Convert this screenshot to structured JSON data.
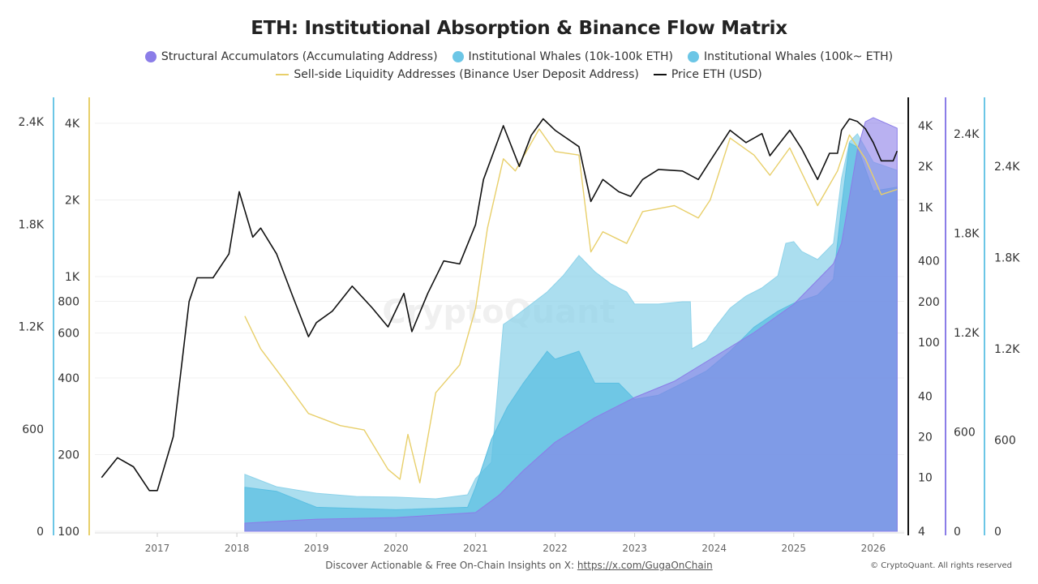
{
  "chart_data": {
    "type": "area+line",
    "title": "ETH: Institutional Absorption & Binance Flow Matrix",
    "legend_position": "top",
    "grid": true,
    "x_ticks": [
      "2017",
      "2018",
      "2019",
      "2020",
      "2021",
      "2022",
      "2023",
      "2024",
      "2025",
      "2026"
    ],
    "axes": {
      "left_outer": {
        "color": "#6cc6e6",
        "scale": "linear",
        "range": [
          0,
          2400
        ],
        "ticks": [
          "0",
          "600",
          "1.2K",
          "1.8K",
          "2.4K"
        ],
        "tick_values": [
          0,
          600,
          1200,
          1800,
          2400
        ]
      },
      "left_inner": {
        "color": "#e8cf6a",
        "scale": "log",
        "range": [
          100,
          4000
        ],
        "ticks": [
          "100",
          "200",
          "400",
          "600",
          "800",
          "1K",
          "2K",
          "4K"
        ],
        "tick_values": [
          100,
          200,
          400,
          600,
          800,
          1000,
          2000,
          4000
        ]
      },
      "right_price": {
        "color": "#111111",
        "scale": "log",
        "range": [
          4,
          4000
        ],
        "ticks": [
          "4",
          "10",
          "20",
          "40",
          "100",
          "200",
          "400",
          "1K",
          "2K",
          "4K"
        ],
        "tick_values": [
          4,
          10,
          20,
          40,
          100,
          200,
          400,
          1000,
          2000,
          4000
        ]
      },
      "right_purple": {
        "color": "#8b7de8",
        "scale": "linear",
        "range": [
          0,
          2400
        ],
        "ticks": [
          "0",
          "600",
          "1.2K",
          "1.8K",
          "2.4K"
        ],
        "tick_values": [
          0,
          600,
          1200,
          1800,
          2400
        ]
      },
      "right_blue": {
        "color": "#6cc6e6",
        "scale": "linear",
        "range": [
          0,
          2700
        ],
        "ticks": [
          "0",
          "600",
          "1.2K",
          "1.8K",
          "2.4K"
        ],
        "tick_values": [
          0,
          600,
          1200,
          1800,
          2400
        ]
      }
    },
    "series": [
      {
        "name": "Institutional Whales (100k~ ETH)",
        "type": "area",
        "axis": "left_outer",
        "color": "#8fd3ea",
        "x": [
          2018.1,
          2018.5,
          2019,
          2019.5,
          2020,
          2020.5,
          2020.9,
          2021.0,
          2021.2,
          2021.35,
          2021.5,
          2021.9,
          2022.1,
          2022.3,
          2022.5,
          2022.7,
          2022.9,
          2023.0,
          2023.3,
          2023.6,
          2023.7,
          2023.72,
          2023.9,
          2024.0,
          2024.2,
          2024.4,
          2024.6,
          2024.8,
          2024.9,
          2025.0,
          2025.1,
          2025.3,
          2025.5,
          2025.6,
          2025.7,
          2025.8,
          2026.0,
          2026.3
        ],
        "y": [
          333,
          261,
          223,
          204,
          200,
          190,
          214,
          309,
          404,
          1212,
          1260,
          1402,
          1497,
          1616,
          1521,
          1450,
          1402,
          1331,
          1331,
          1345,
          1345,
          1069,
          1117,
          1188,
          1307,
          1378,
          1426,
          1497,
          1687,
          1697,
          1640,
          1592,
          1687,
          2067,
          2281,
          2329,
          2163,
          2115
        ]
      },
      {
        "name": "Institutional Whales (10k-100k ETH)",
        "type": "area",
        "axis": "right_blue",
        "color": "#5bbfe2",
        "x": [
          2018.1,
          2018.5,
          2019,
          2020,
          2020.9,
          2021.0,
          2021.2,
          2021.4,
          2021.6,
          2021.9,
          2022.0,
          2022.3,
          2022.5,
          2022.8,
          2023.0,
          2023.3,
          2023.6,
          2023.9,
          2024.2,
          2024.5,
          2024.8,
          2025.0,
          2025.3,
          2025.5,
          2025.6,
          2025.7,
          2025.8,
          2026.0,
          2026.3
        ],
        "y": [
          289,
          263,
          158,
          142,
          158,
          289,
          605,
          816,
          974,
          1184,
          1132,
          1184,
          974,
          974,
          868,
          895,
          974,
          1053,
          1184,
          1342,
          1447,
          1500,
          1553,
          1658,
          2132,
          2553,
          2526,
          2237,
          2263
        ]
      },
      {
        "name": "Structural Accumulators (Accumulating Address)",
        "type": "area",
        "axis": "right_purple",
        "color": "#8b7de8",
        "x": [
          2018.1,
          2019,
          2020,
          2021,
          2021.3,
          2021.6,
          2022,
          2022.5,
          2023,
          2023.5,
          2024,
          2024.5,
          2025,
          2025.5,
          2025.6,
          2025.8,
          2025.9,
          2026.0,
          2026.3
        ],
        "y": [
          49,
          73,
          83,
          113,
          220,
          367,
          538,
          686,
          808,
          906,
          1053,
          1200,
          1371,
          1616,
          1739,
          2302,
          2473,
          2498,
          2434
        ]
      },
      {
        "name": "Sell-side Liquidity Addresses (Binance User Deposit Address)",
        "type": "line",
        "axis": "left_inner",
        "color": "#e8cf6a",
        "x": [
          2018.1,
          2018.3,
          2018.6,
          2018.9,
          2019.3,
          2019.6,
          2019.9,
          2020.05,
          2020.15,
          2020.3,
          2020.5,
          2020.8,
          2021.0,
          2021.15,
          2021.35,
          2021.5,
          2021.8,
          2022.0,
          2022.3,
          2022.45,
          2022.6,
          2022.9,
          2023.1,
          2023.5,
          2023.8,
          2023.95,
          2024.2,
          2024.5,
          2024.7,
          2024.95,
          2025.3,
          2025.55,
          2025.7,
          2025.9,
          2026.1,
          2026.3
        ],
        "y": [
          700,
          520,
          390,
          290,
          260,
          250,
          175,
          160,
          240,
          155,
          350,
          450,
          750,
          1550,
          2900,
          2600,
          3800,
          3100,
          3000,
          1250,
          1500,
          1350,
          1800,
          1900,
          1700,
          2000,
          3500,
          3000,
          2500,
          3200,
          1900,
          2600,
          3600,
          2900,
          2100,
          2200
        ]
      },
      {
        "name": "Price ETH (USD)",
        "type": "line",
        "axis": "right_price",
        "color": "#111111",
        "x": [
          2016.3,
          2016.5,
          2016.7,
          2016.9,
          2017.0,
          2017.2,
          2017.4,
          2017.5,
          2017.7,
          2017.9,
          2018.03,
          2018.2,
          2018.3,
          2018.5,
          2018.7,
          2018.9,
          2019.0,
          2019.2,
          2019.45,
          2019.7,
          2019.9,
          2020.1,
          2020.2,
          2020.4,
          2020.6,
          2020.8,
          2021.0,
          2021.1,
          2021.35,
          2021.55,
          2021.7,
          2021.85,
          2022.0,
          2022.3,
          2022.45,
          2022.6,
          2022.8,
          2022.95,
          2023.1,
          2023.3,
          2023.6,
          2023.8,
          2023.95,
          2024.2,
          2024.4,
          2024.6,
          2024.7,
          2024.9,
          2024.95,
          2025.1,
          2025.3,
          2025.45,
          2025.55,
          2025.6,
          2025.7,
          2025.8,
          2025.9,
          2026.0,
          2026.1,
          2026.25,
          2026.3
        ],
        "y": [
          10,
          14,
          12,
          8,
          8,
          20,
          200,
          300,
          300,
          450,
          1300,
          600,
          700,
          450,
          220,
          110,
          140,
          170,
          260,
          180,
          130,
          230,
          120,
          230,
          400,
          380,
          740,
          1600,
          4000,
          2000,
          3400,
          4500,
          3700,
          2800,
          1100,
          1600,
          1300,
          1200,
          1600,
          1900,
          1850,
          1600,
          2200,
          3700,
          3000,
          3500,
          2400,
          3400,
          3700,
          2700,
          1600,
          2500,
          2500,
          3700,
          4500,
          4300,
          3800,
          3000,
          2200,
          2200,
          2600
        ]
      }
    ]
  },
  "legend": [
    {
      "label": "Structural Accumulators (Accumulating Address)",
      "marker": "dot",
      "color": "#8b7de8"
    },
    {
      "label": "Institutional Whales (10k-100k ETH)",
      "marker": "dot",
      "color": "#6cc6e6"
    },
    {
      "label": "Institutional Whales (100k~ ETH)",
      "marker": "dot",
      "color": "#6cc6e6"
    },
    {
      "label": "Sell-side Liquidity Addresses (Binance User Deposit Address)",
      "marker": "line",
      "color": "#e8cf6a"
    },
    {
      "label": "Price ETH (USD)",
      "marker": "line",
      "color": "#111111"
    }
  ],
  "watermark": "CryptoQuant",
  "footer": {
    "text": "Discover Actionable & Free On-Chain Insights on X: ",
    "link": "https://x.com/GugaOnChain",
    "copyright": "© CryptoQuant. All rights reserved"
  }
}
